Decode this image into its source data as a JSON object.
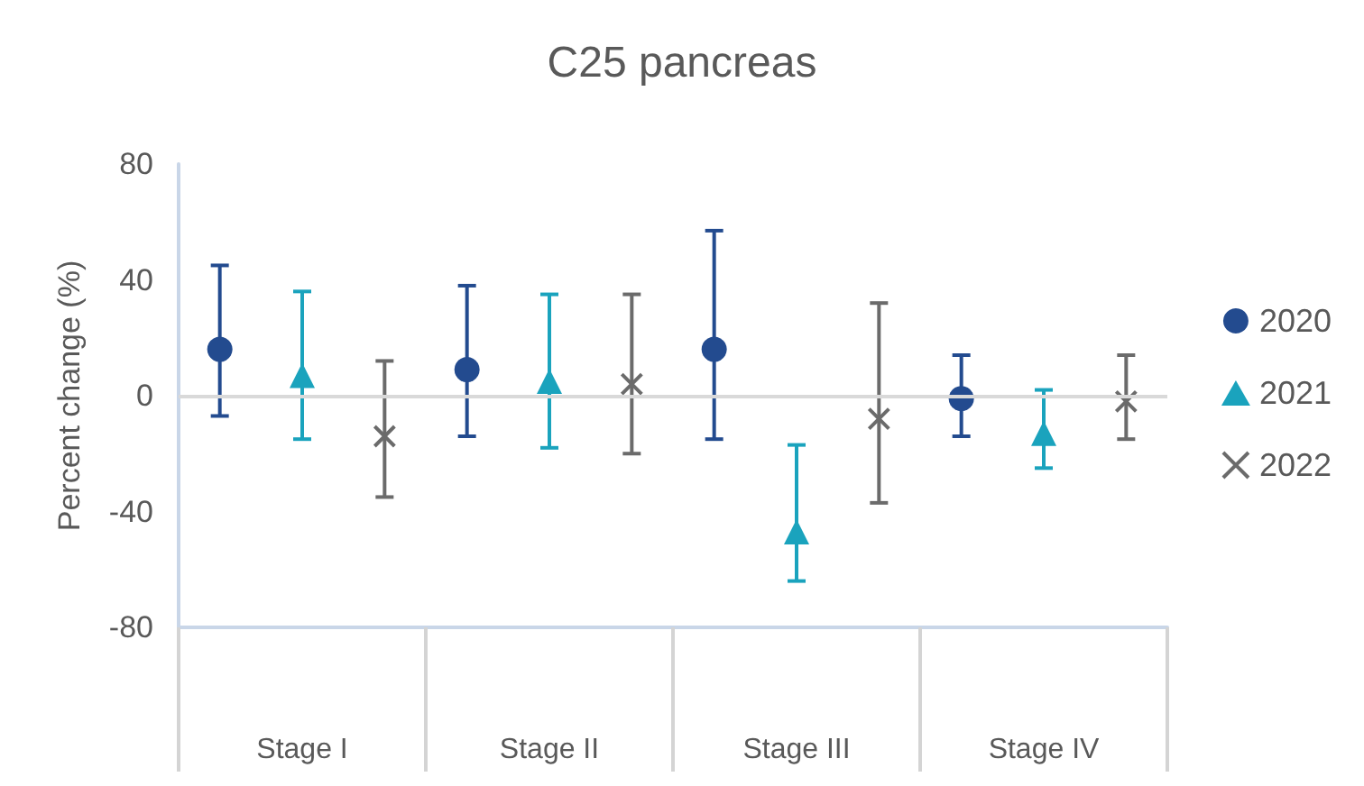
{
  "chart_data": {
    "type": "scatter",
    "title": "C25 pancreas",
    "ylabel": "Percent change (%)",
    "categories": [
      "Stage I",
      "Stage II",
      "Stage III",
      "Stage IV"
    ],
    "series": [
      {
        "name": "2020",
        "color": "#234b8f",
        "marker": "circle",
        "values": [
          16,
          9,
          16,
          -1
        ],
        "errors": [
          [
            -7,
            45
          ],
          [
            -14,
            38
          ],
          [
            -15,
            57
          ],
          [
            -14,
            14
          ]
        ]
      },
      {
        "name": "2021",
        "color": "#1aa3bd",
        "marker": "triangle",
        "values": [
          7,
          5,
          -47,
          -13
        ],
        "errors": [
          [
            -15,
            36
          ],
          [
            -18,
            35
          ],
          [
            -17,
            -64
          ],
          [
            -25,
            2
          ]
        ]
      },
      {
        "name": "2022",
        "color": "#6b6b6b",
        "marker": "cross",
        "values": [
          -14,
          4,
          -8,
          -2
        ],
        "errors": [
          [
            -35,
            12
          ],
          [
            -20,
            35
          ],
          [
            -37,
            32
          ],
          [
            -15,
            14
          ]
        ]
      }
    ],
    "ylim": [
      -80,
      80
    ],
    "yticks": [
      -80,
      -40,
      0,
      40,
      80
    ],
    "ref_lines": [
      {
        "axis": "y",
        "value": 0,
        "color": "#d9d9d9"
      }
    ],
    "grid": false,
    "legend": "right"
  }
}
